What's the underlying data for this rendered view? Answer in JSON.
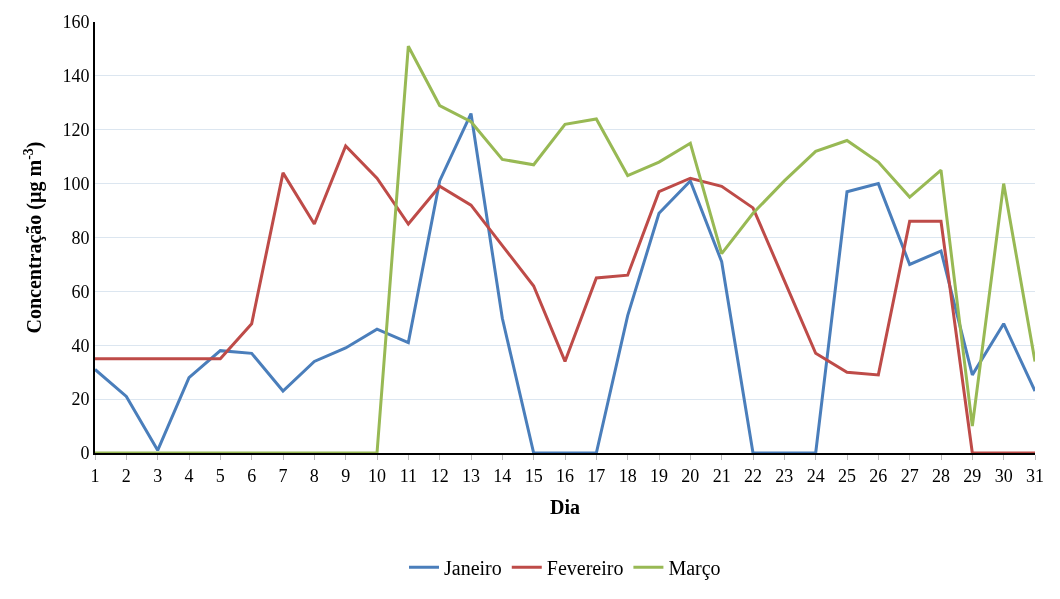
{
  "chart_data": {
    "type": "line",
    "xlabel": "Dia",
    "ylabel": "Concentração (µg m$^{-3}$)",
    "x": [
      1,
      2,
      3,
      4,
      5,
      6,
      7,
      8,
      9,
      10,
      11,
      12,
      13,
      14,
      15,
      16,
      17,
      18,
      19,
      20,
      21,
      22,
      23,
      24,
      25,
      26,
      27,
      28,
      29,
      30,
      31
    ],
    "xlim": [
      1,
      31
    ],
    "xticks": [
      1,
      2,
      3,
      4,
      5,
      6,
      7,
      8,
      9,
      10,
      11,
      12,
      13,
      14,
      15,
      16,
      17,
      18,
      19,
      20,
      21,
      22,
      23,
      24,
      25,
      26,
      27,
      28,
      29,
      30,
      31
    ],
    "ylim": [
      0,
      160
    ],
    "yticks": [
      0,
      20,
      40,
      60,
      80,
      100,
      120,
      140,
      160
    ],
    "grid": "y",
    "legend": "bottom",
    "marker": "none",
    "line_style": "solid",
    "series": [
      {
        "name": "Janeiro",
        "color": "#4a7ebb",
        "values": [
          31,
          21,
          1,
          28,
          38,
          37,
          23,
          34,
          39,
          46,
          41,
          101,
          126,
          50,
          0,
          0,
          0,
          51,
          89,
          101,
          71,
          0,
          0,
          0,
          97,
          100,
          70,
          75,
          29,
          48,
          23
        ]
      },
      {
        "name": "Fevereiro",
        "color": "#be4b48",
        "values": [
          35,
          35,
          35,
          35,
          35,
          48,
          104,
          85,
          114,
          102,
          85,
          99,
          92,
          77,
          62,
          34,
          65,
          66,
          97,
          102,
          99,
          91,
          64,
          37,
          30,
          29,
          86,
          86,
          0,
          0,
          0
        ]
      },
      {
        "name": "Março",
        "color": "#98b954",
        "values": [
          0,
          0,
          0,
          0,
          0,
          0,
          0,
          0,
          0,
          0,
          151,
          129,
          123,
          109,
          107,
          122,
          124,
          103,
          108,
          115,
          74,
          89,
          101,
          112,
          116,
          108,
          95,
          105,
          10,
          100,
          34
        ]
      }
    ]
  }
}
